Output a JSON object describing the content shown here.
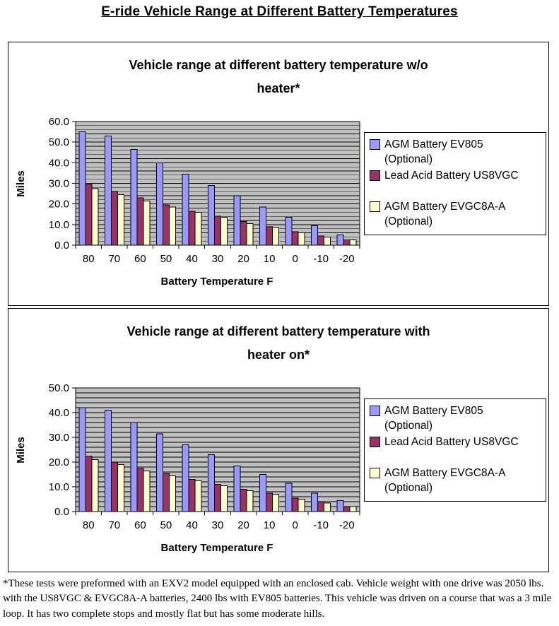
{
  "page": {
    "title": "E-ride Vehicle Range at Different Battery Temperatures",
    "footnote": "*These tests were preformed with an EXV2 model equipped with an enclosed cab. Vehicle weight with one drive was 2050 lbs. with the US8VGC & EVGC8A-A batteries, 2400 lbs with EV805 batteries. This vehicle was driven on a course that was a 3 mile loop. It has two complete stops and mostly flat but has some moderate hills."
  },
  "colors": {
    "plot_background": "#c0c0c0",
    "gridline": "#000000",
    "bar_outline": "#000000",
    "agm_ev805": "#9999ff",
    "lead_acid_us8vgc": "#993366",
    "agm_evgc8aa": "#ffffcc"
  },
  "chart_data": [
    {
      "type": "bar",
      "title": "Vehicle range at different battery temperature w/o heater*",
      "title_lines": [
        "Vehicle range at different battery temperature w/o",
        "heater*"
      ],
      "xlabel": "Battery Temperature F",
      "ylabel": "Miles",
      "ylim": [
        0,
        60
      ],
      "ytick_step": 10,
      "minor_grid_step": 2,
      "ytick_decimals": 1,
      "grid": true,
      "legend_position": "right",
      "categories": [
        "80",
        "70",
        "60",
        "50",
        "40",
        "30",
        "20",
        "10",
        "0",
        "-10",
        "-20"
      ],
      "series": [
        {
          "name": "AGM Battery EV805 (Optional)",
          "label_lines": [
            "AGM Battery EV805",
            "(Optional)"
          ],
          "color": "#9999ff",
          "values": [
            55.0,
            53.0,
            46.5,
            40.0,
            34.5,
            29.0,
            24.0,
            18.5,
            13.5,
            9.5,
            5.0
          ]
        },
        {
          "name": "Lead Acid Battery US8VGC",
          "label_lines": [
            "Lead Acid Battery US8VGC",
            ""
          ],
          "color": "#993366",
          "values": [
            29.5,
            26.0,
            23.0,
            19.5,
            16.5,
            14.0,
            11.5,
            9.0,
            6.5,
            4.5,
            2.5
          ]
        },
        {
          "name": "AGM Battery EVGC8A-A (Optional)",
          "label_lines": [
            "AGM Battery EVGC8A-A",
            "(Optional)"
          ],
          "color": "#ffffcc",
          "values": [
            27.5,
            24.5,
            21.5,
            18.5,
            16.0,
            13.5,
            10.5,
            8.5,
            6.0,
            4.0,
            2.5
          ]
        }
      ]
    },
    {
      "type": "bar",
      "title": "Vehicle range at different battery temperature with heater on*",
      "title_lines": [
        "Vehicle range at different battery temperature with",
        "heater on*"
      ],
      "xlabel": "Battery Temperature F",
      "ylabel": "Miles",
      "ylim": [
        0,
        50
      ],
      "ytick_step": 10,
      "minor_grid_step": 2,
      "ytick_decimals": 1,
      "grid": true,
      "legend_position": "right",
      "categories": [
        "80",
        "70",
        "60",
        "50",
        "40",
        "30",
        "20",
        "10",
        "0",
        "-10",
        "-20"
      ],
      "series": [
        {
          "name": "AGM Battery EV805 (Optional)",
          "label_lines": [
            "AGM Battery EV805",
            "(Optional)"
          ],
          "color": "#9999ff",
          "values": [
            42.0,
            41.0,
            36.0,
            31.5,
            27.0,
            23.0,
            18.5,
            15.0,
            11.5,
            7.5,
            4.5
          ]
        },
        {
          "name": "Lead Acid Battery US8VGC",
          "label_lines": [
            "Lead Acid Battery US8VGC",
            ""
          ],
          "color": "#993366",
          "values": [
            22.5,
            20.0,
            17.5,
            15.5,
            13.0,
            11.0,
            9.0,
            7.5,
            5.5,
            4.0,
            2.0
          ]
        },
        {
          "name": "AGM Battery EVGC8A-A (Optional)",
          "label_lines": [
            "AGM Battery EVGC8A-A",
            "(Optional)"
          ],
          "color": "#ffffcc",
          "values": [
            21.0,
            19.0,
            16.5,
            14.5,
            12.5,
            10.5,
            8.5,
            7.0,
            5.0,
            3.5,
            2.0
          ]
        }
      ]
    }
  ]
}
